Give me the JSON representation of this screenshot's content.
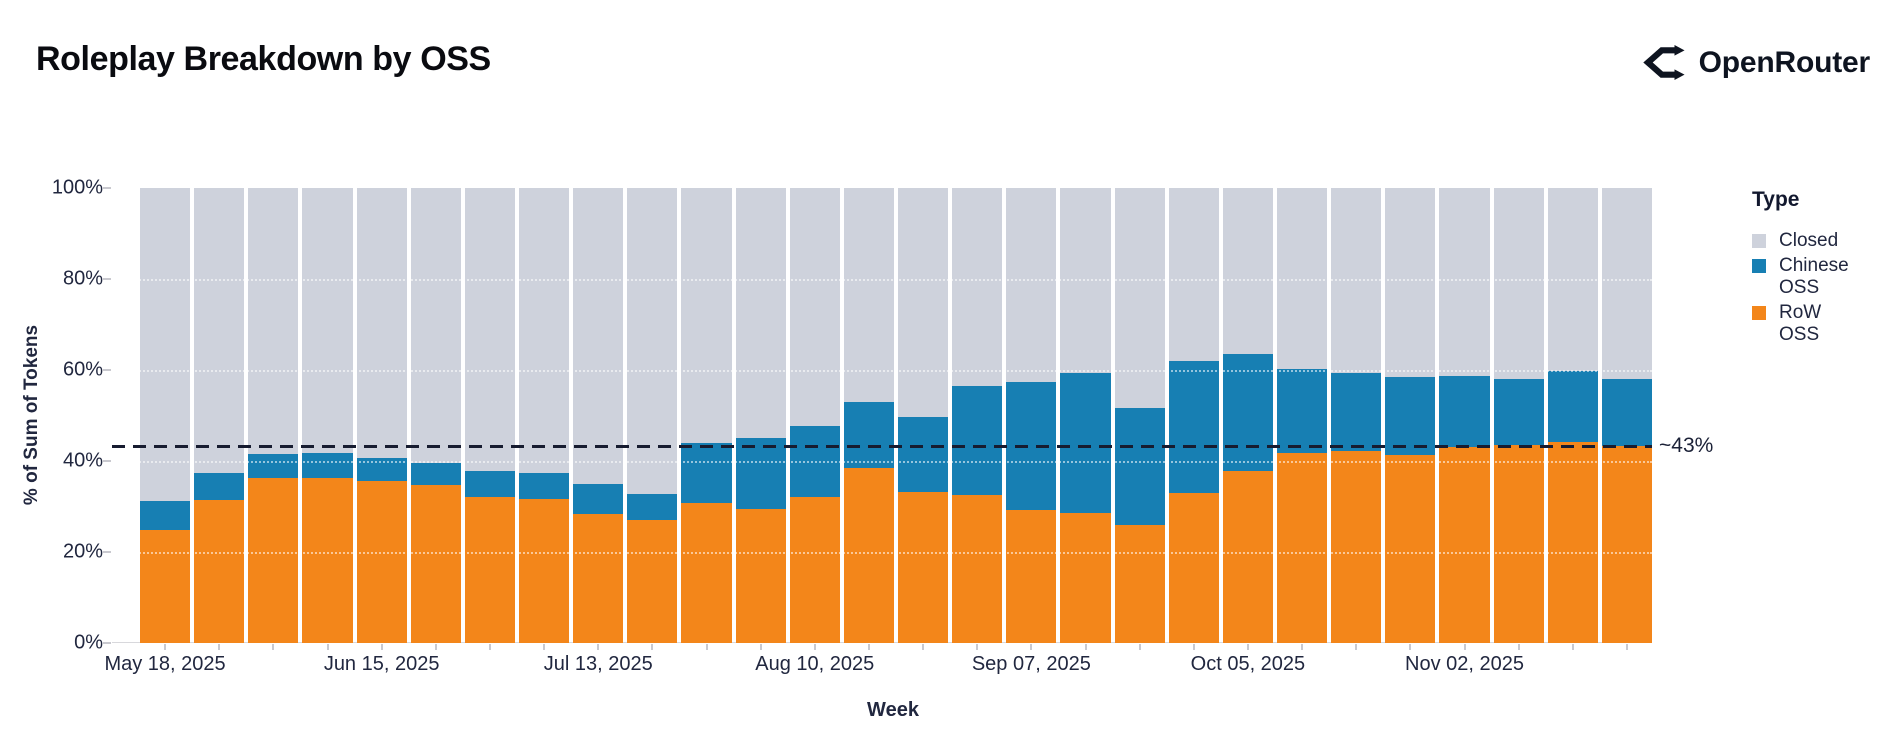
{
  "header": {
    "title": "Roleplay Breakdown by OSS",
    "brand": "OpenRouter"
  },
  "chart_data": {
    "type": "bar",
    "stacked": true,
    "normalized_percent": true,
    "title": "Roleplay Breakdown by OSS",
    "xlabel": "Week",
    "ylabel": "% of Sum of Tokens",
    "ylim": [
      0,
      100
    ],
    "y_tick_labels": [
      "0%",
      "20%",
      "40%",
      "60%",
      "80%",
      "100%"
    ],
    "y_tick_values": [
      0,
      20,
      40,
      60,
      80,
      100
    ],
    "x_tick_labels": [
      "May 18, 2025",
      "Jun 15, 2025",
      "Jul 13, 2025",
      "Aug 10, 2025",
      "Sep 07, 2025",
      "Oct 05, 2025",
      "Nov 02, 2025"
    ],
    "categories": [
      "May 18, 2025",
      "May 25, 2025",
      "Jun 01, 2025",
      "Jun 08, 2025",
      "Jun 15, 2025",
      "Jun 22, 2025",
      "Jun 29, 2025",
      "Jul 06, 2025",
      "Jul 13, 2025",
      "Jul 20, 2025",
      "Jul 27, 2025",
      "Aug 03, 2025",
      "Aug 10, 2025",
      "Aug 17, 2025",
      "Aug 24, 2025",
      "Aug 31, 2025",
      "Sep 07, 2025",
      "Sep 14, 2025",
      "Sep 21, 2025",
      "Sep 28, 2025",
      "Oct 05, 2025",
      "Oct 12, 2025",
      "Oct 19, 2025",
      "Oct 26, 2025",
      "Nov 02, 2025",
      "Nov 09, 2025",
      "Nov 16, 2025",
      "Nov 23, 2025"
    ],
    "series": [
      {
        "name": "RoW OSS",
        "color": "#F3861A",
        "values": [
          24.8,
          31.4,
          36.2,
          36.3,
          35.5,
          34.7,
          32.0,
          31.6,
          28.4,
          27.0,
          30.7,
          29.5,
          32.0,
          38.5,
          33.1,
          32.5,
          29.2,
          28.5,
          25.9,
          32.9,
          37.7,
          41.7,
          42.2,
          41.3,
          43.0,
          43.5,
          44.1,
          43.4
        ]
      },
      {
        "name": "Chinese OSS",
        "color": "#177FB3",
        "values": [
          6.3,
          6.0,
          5.3,
          5.5,
          5.1,
          4.9,
          5.7,
          5.7,
          6.5,
          5.7,
          13.2,
          15.5,
          15.8,
          14.5,
          16.5,
          24.0,
          28.2,
          30.9,
          25.7,
          29.1,
          25.8,
          18.5,
          17.1,
          17.2,
          15.7,
          14.5,
          15.7,
          14.6
        ]
      },
      {
        "name": "Closed",
        "color": "#CED2DC",
        "values": [
          68.9,
          62.6,
          58.5,
          58.2,
          59.4,
          60.4,
          62.3,
          62.7,
          65.1,
          67.3,
          56.1,
          55.0,
          52.2,
          47.0,
          50.4,
          43.5,
          42.6,
          40.6,
          48.4,
          38.0,
          36.5,
          39.8,
          40.7,
          41.5,
          41.3,
          42.0,
          40.2,
          42.0
        ]
      }
    ],
    "annotation": {
      "label": "~43%",
      "value": 43.6
    },
    "legend": {
      "title": "Type",
      "position": "right",
      "items": [
        "Closed",
        "Chinese OSS",
        "RoW OSS"
      ]
    },
    "grid": "white dotted horizontal lines at 20% steps"
  }
}
